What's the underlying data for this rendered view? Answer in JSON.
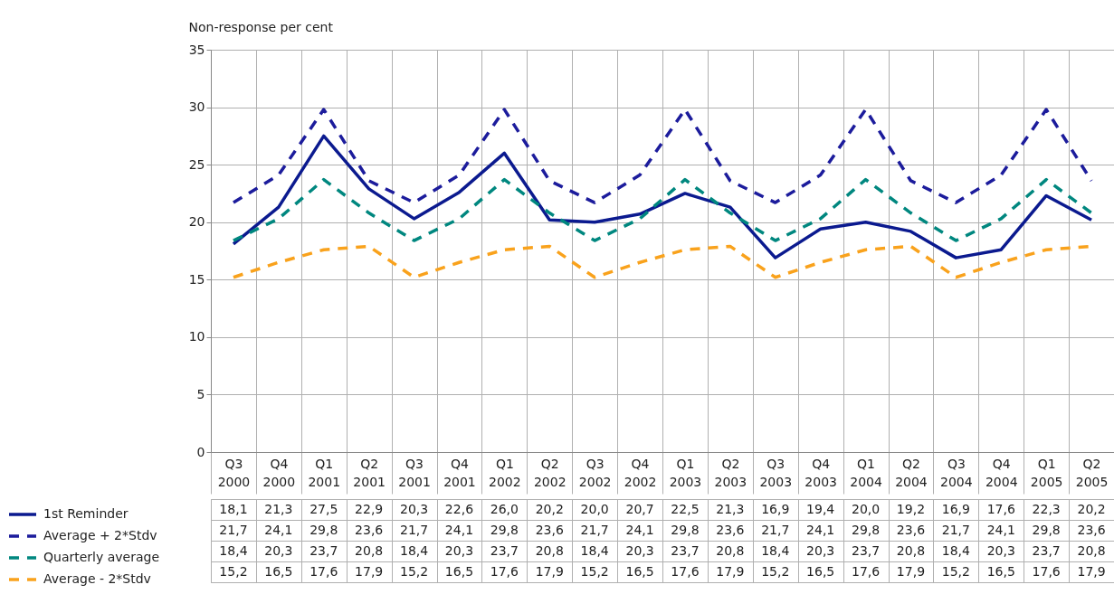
{
  "chart_data": {
    "type": "line",
    "ylabel": "Non-response per cent",
    "categories": [
      "Q3 2000",
      "Q4 2000",
      "Q1 2001",
      "Q2 2001",
      "Q3 2001",
      "Q4 2001",
      "Q1 2002",
      "Q2 2002",
      "Q3 2002",
      "Q4 2002",
      "Q1 2003",
      "Q2 2003",
      "Q3 2003",
      "Q4 2003",
      "Q1 2004",
      "Q2 2004",
      "Q3 2004",
      "Q4 2004",
      "Q1 2005",
      "Q2 2005"
    ],
    "series": [
      {
        "name": "1st Reminder",
        "color": "#0b1a8f",
        "line_style": "solid",
        "values": [
          18.1,
          21.3,
          27.5,
          22.9,
          20.3,
          22.6,
          26.0,
          20.2,
          20.0,
          20.7,
          22.5,
          21.3,
          16.9,
          19.4,
          20.0,
          19.2,
          16.9,
          17.6,
          22.3,
          20.2
        ],
        "value_labels": [
          "18,1",
          "21,3",
          "27,5",
          "22,9",
          "20,3",
          "22,6",
          "26,0",
          "20,2",
          "20,0",
          "20,7",
          "22,5",
          "21,3",
          "16,9",
          "19,4",
          "20,0",
          "19,2",
          "16,9",
          "17,6",
          "22,3",
          "20,2"
        ]
      },
      {
        "name": "Average + 2*Stdv",
        "color": "#1c1c9c",
        "line_style": "dashed",
        "values": [
          21.7,
          24.1,
          29.8,
          23.6,
          21.7,
          24.1,
          29.8,
          23.6,
          21.7,
          24.1,
          29.8,
          23.6,
          21.7,
          24.1,
          29.8,
          23.6,
          21.7,
          24.1,
          29.8,
          23.6
        ],
        "value_labels": [
          "21,7",
          "24,1",
          "29,8",
          "23,6",
          "21,7",
          "24,1",
          "29,8",
          "23,6",
          "21,7",
          "24,1",
          "29,8",
          "23,6",
          "21,7",
          "24,1",
          "29,8",
          "23,6",
          "21,7",
          "24,1",
          "29,8",
          "23,6"
        ]
      },
      {
        "name": "Quarterly average",
        "color": "#00877f",
        "line_style": "dashed",
        "values": [
          18.4,
          20.3,
          23.7,
          20.8,
          18.4,
          20.3,
          23.7,
          20.8,
          18.4,
          20.3,
          23.7,
          20.8,
          18.4,
          20.3,
          23.7,
          20.8,
          18.4,
          20.3,
          23.7,
          20.8
        ],
        "value_labels": [
          "18,4",
          "20,3",
          "23,7",
          "20,8",
          "18,4",
          "20,3",
          "23,7",
          "20,8",
          "18,4",
          "20,3",
          "23,7",
          "20,8",
          "18,4",
          "20,3",
          "23,7",
          "20,8",
          "18,4",
          "20,3",
          "23,7",
          "20,8"
        ]
      },
      {
        "name": "Average - 2*Stdv",
        "color": "#f9a21c",
        "line_style": "dashed",
        "values": [
          15.2,
          16.5,
          17.6,
          17.9,
          15.2,
          16.5,
          17.6,
          17.9,
          15.2,
          16.5,
          17.6,
          17.9,
          15.2,
          16.5,
          17.6,
          17.9,
          15.2,
          16.5,
          17.6,
          17.9
        ],
        "value_labels": [
          "15,2",
          "16,5",
          "17,6",
          "17,9",
          "15,2",
          "16,5",
          "17,6",
          "17,9",
          "15,2",
          "16,5",
          "17,6",
          "17,9",
          "15,2",
          "16,5",
          "17,6",
          "17,9",
          "15,2",
          "16,5",
          "17,6",
          "17,9"
        ]
      }
    ],
    "ylim": [
      0,
      35
    ],
    "yticks": [
      0,
      5,
      10,
      15,
      20,
      25,
      30,
      35
    ],
    "grid": true,
    "legend": "bottom"
  }
}
